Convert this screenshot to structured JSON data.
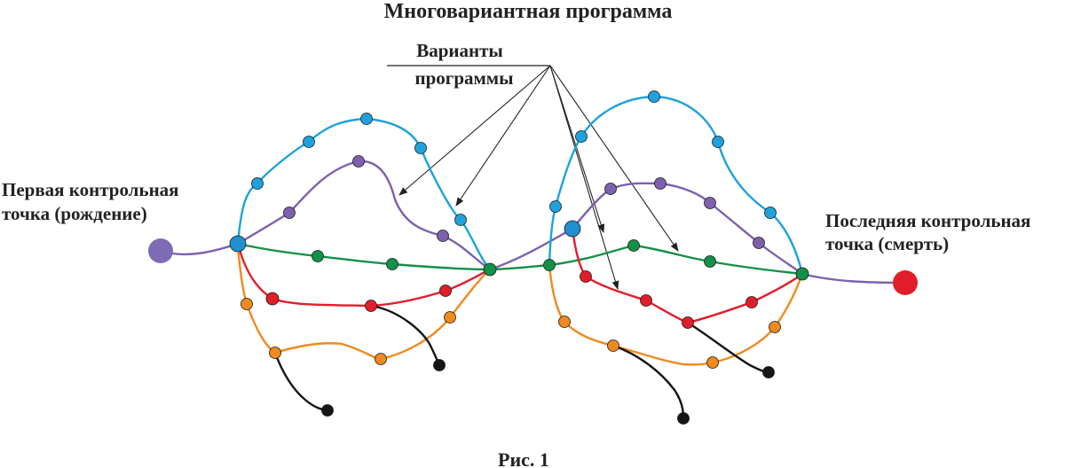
{
  "diagram": {
    "title": "Многовариантная программа",
    "variants_label_line1": "Варианты",
    "variants_label_line2": "программы",
    "start_label_line1": "Первая контрольная",
    "start_label_line2": "точка (рождение)",
    "end_label_line1": "Последняя контрольная",
    "end_label_line2": "точка (смерть)",
    "caption": "Рис. 1"
  },
  "colors": {
    "blue": "#1fa2dc",
    "purple": "#7d61ad",
    "green": "#139147",
    "red": "#e21d2b",
    "orange": "#ef8a1e",
    "black": "#151515",
    "start_node": "#7d6bb3",
    "end_node": "#e21d2b",
    "arrow": "#222222"
  }
}
